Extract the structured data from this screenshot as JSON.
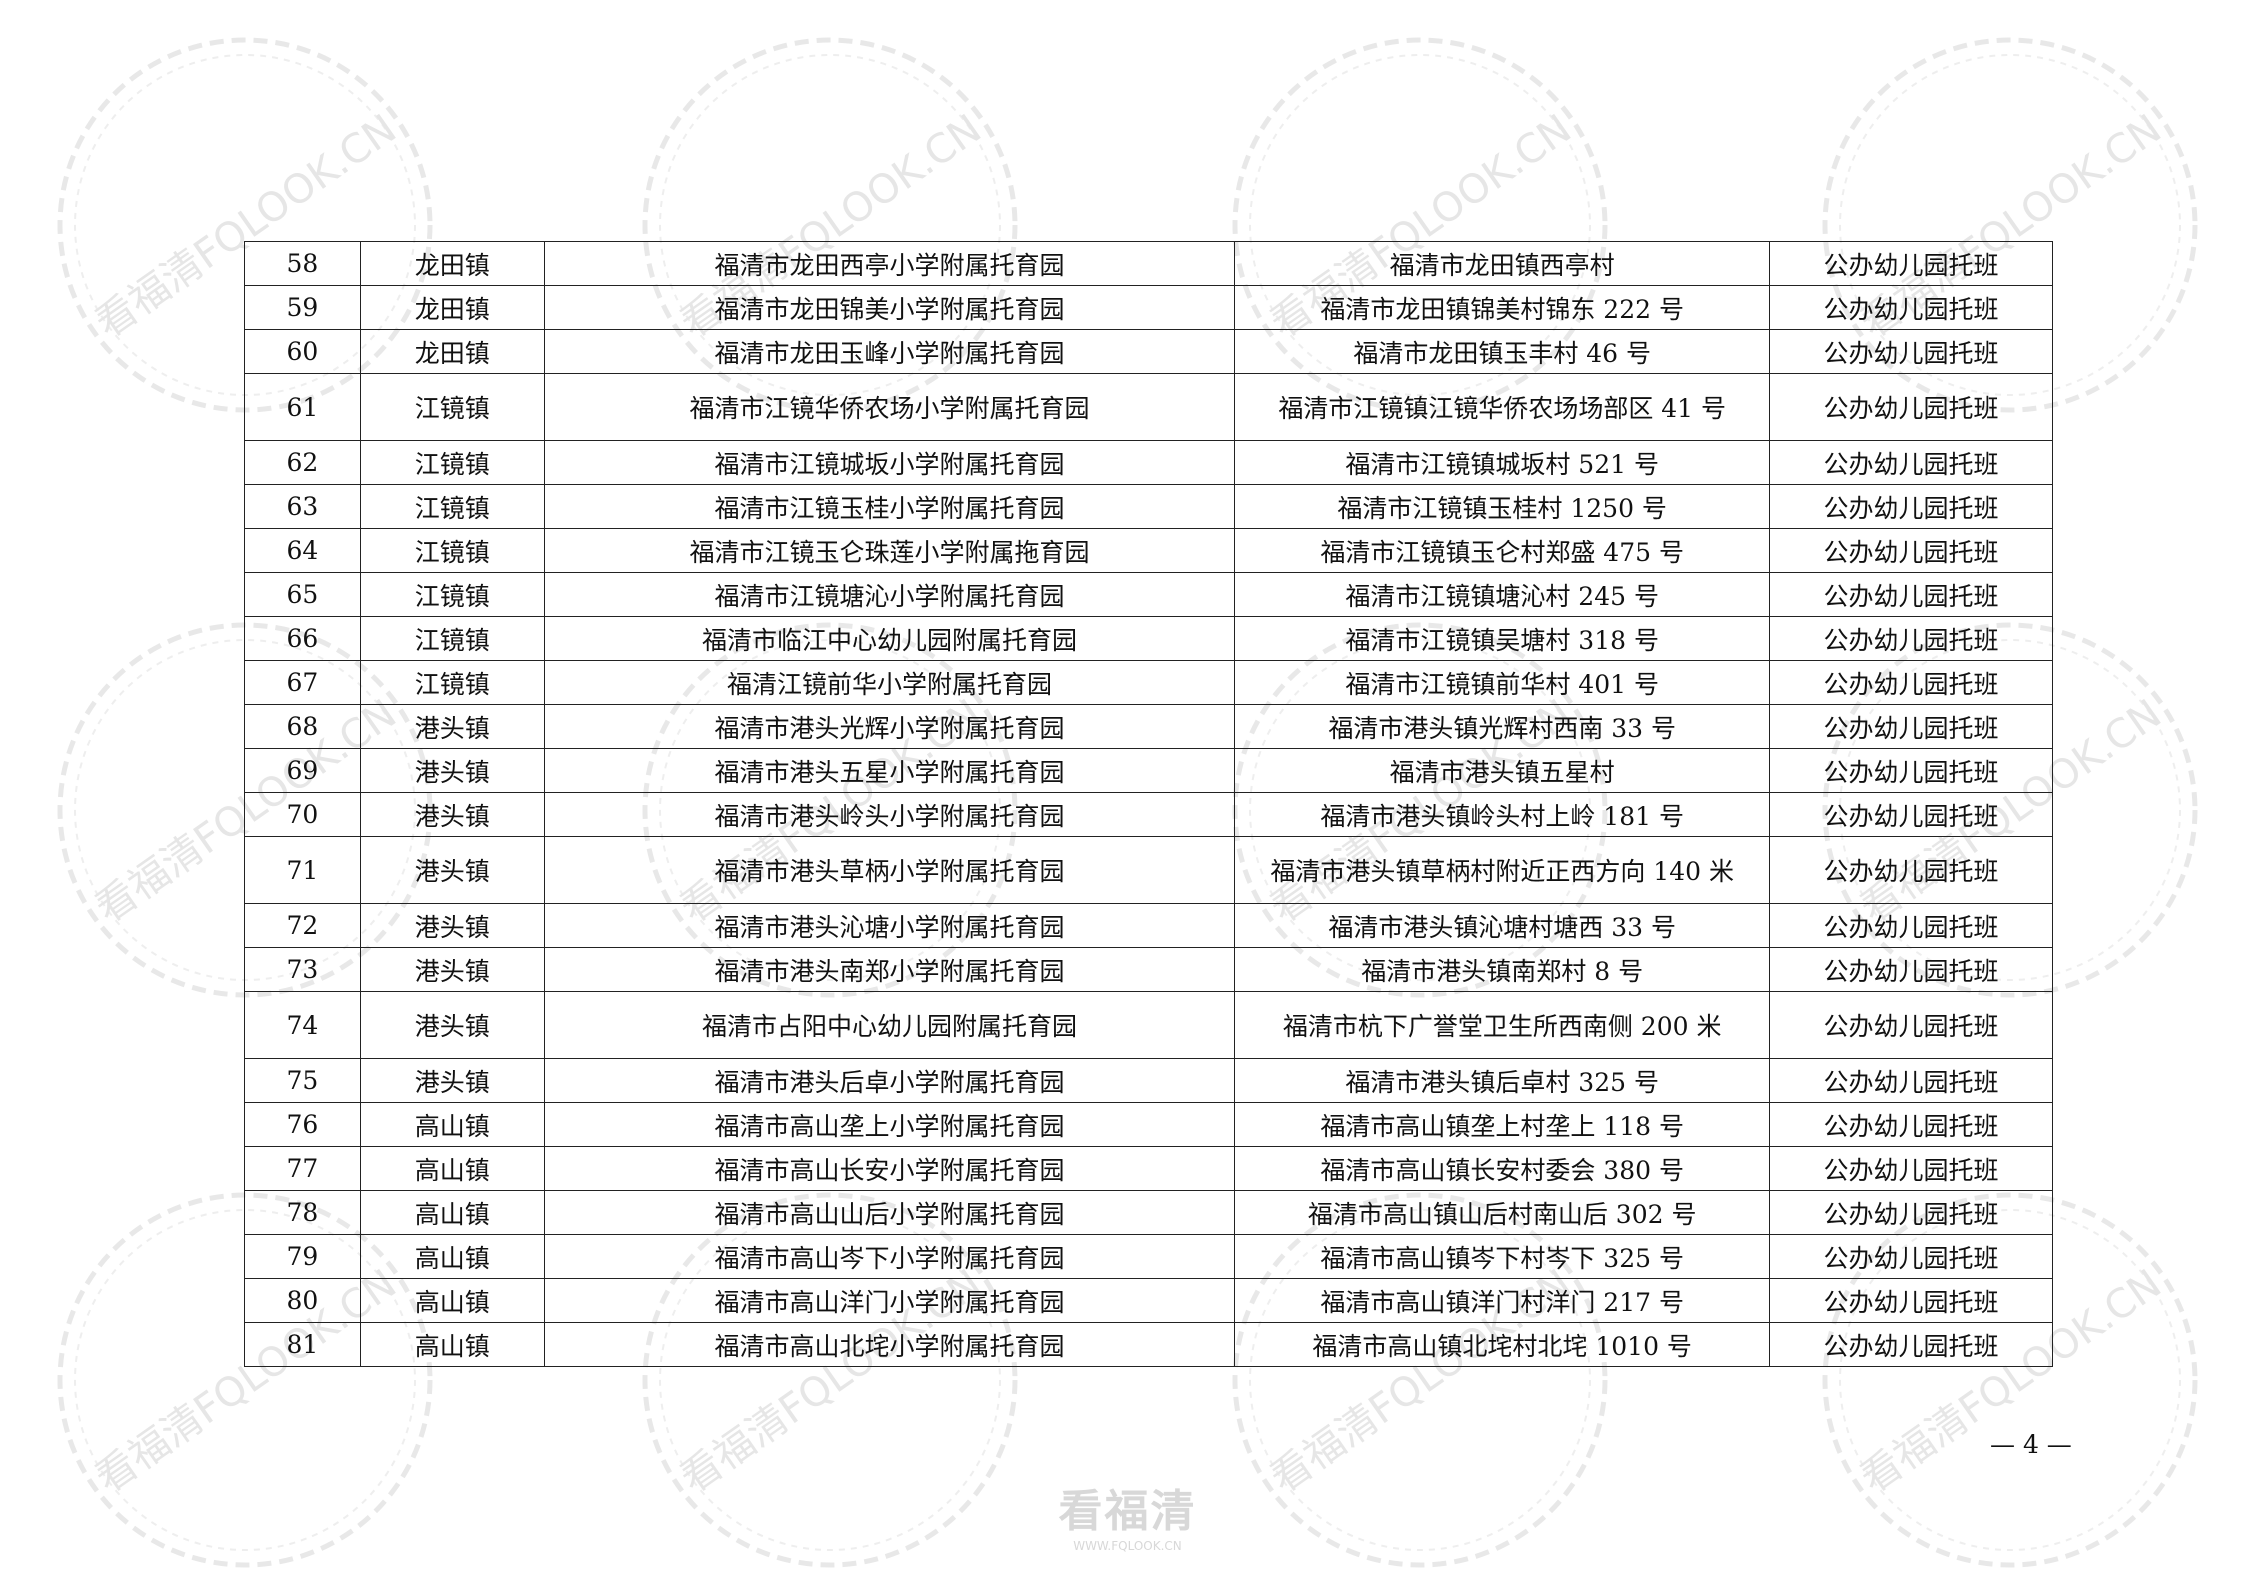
{
  "watermark": {
    "text": "看福清FQLOOK.CN"
  },
  "logo": {
    "text": "看福清",
    "url": "WWW.FQLOOK.CN"
  },
  "page_number": "— 4 —",
  "table": {
    "rows": [
      {
        "no": "58",
        "town": "龙田镇",
        "name": "福清市龙田西亭小学附属托育园",
        "address": "福清市龙田镇西亭村",
        "type": "公办幼儿园托班",
        "tall": false
      },
      {
        "no": "59",
        "town": "龙田镇",
        "name": "福清市龙田锦美小学附属托育园",
        "address": "福清市龙田镇锦美村锦东 222 号",
        "type": "公办幼儿园托班",
        "tall": false
      },
      {
        "no": "60",
        "town": "龙田镇",
        "name": "福清市龙田玉峰小学附属托育园",
        "address": "福清市龙田镇玉丰村 46 号",
        "type": "公办幼儿园托班",
        "tall": false
      },
      {
        "no": "61",
        "town": "江镜镇",
        "name": "福清市江镜华侨农场小学附属托育园",
        "address": "福清市江镜镇江镜华侨农场场部区 41 号",
        "type": "公办幼儿园托班",
        "tall": true
      },
      {
        "no": "62",
        "town": "江镜镇",
        "name": "福清市江镜城坂小学附属托育园",
        "address": "福清市江镜镇城坂村 521 号",
        "type": "公办幼儿园托班",
        "tall": false
      },
      {
        "no": "63",
        "town": "江镜镇",
        "name": "福清市江镜玉桂小学附属托育园",
        "address": "福清市江镜镇玉桂村 1250 号",
        "type": "公办幼儿园托班",
        "tall": false
      },
      {
        "no": "64",
        "town": "江镜镇",
        "name": "福清市江镜玉仑珠莲小学附属拖育园",
        "address": "福清市江镜镇玉仑村郑盛 475 号",
        "type": "公办幼儿园托班",
        "tall": false
      },
      {
        "no": "65",
        "town": "江镜镇",
        "name": "福清市江镜塘沁小学附属托育园",
        "address": "福清市江镜镇塘沁村 245 号",
        "type": "公办幼儿园托班",
        "tall": false
      },
      {
        "no": "66",
        "town": "江镜镇",
        "name": "福清市临江中心幼儿园附属托育园",
        "address": "福清市江镜镇吴塘村 318 号",
        "type": "公办幼儿园托班",
        "tall": false
      },
      {
        "no": "67",
        "town": "江镜镇",
        "name": "福清江镜前华小学附属托育园",
        "address": "福清市江镜镇前华村 401 号",
        "type": "公办幼儿园托班",
        "tall": false
      },
      {
        "no": "68",
        "town": "港头镇",
        "name": "福清市港头光辉小学附属托育园",
        "address": "福清市港头镇光辉村西南 33 号",
        "type": "公办幼儿园托班",
        "tall": false
      },
      {
        "no": "69",
        "town": "港头镇",
        "name": "福清市港头五星小学附属托育园",
        "address": "福清市港头镇五星村",
        "type": "公办幼儿园托班",
        "tall": false
      },
      {
        "no": "70",
        "town": "港头镇",
        "name": "福清市港头岭头小学附属托育园",
        "address": "福清市港头镇岭头村上岭 181 号",
        "type": "公办幼儿园托班",
        "tall": false
      },
      {
        "no": "71",
        "town": "港头镇",
        "name": "福清市港头草柄小学附属托育园",
        "address": "福清市港头镇草柄村附近正西方向 140 米",
        "type": "公办幼儿园托班",
        "tall": true
      },
      {
        "no": "72",
        "town": "港头镇",
        "name": "福清市港头沁塘小学附属托育园",
        "address": "福清市港头镇沁塘村塘西 33 号",
        "type": "公办幼儿园托班",
        "tall": false
      },
      {
        "no": "73",
        "town": "港头镇",
        "name": "福清市港头南郑小学附属托育园",
        "address": "福清市港头镇南郑村 8 号",
        "type": "公办幼儿园托班",
        "tall": false
      },
      {
        "no": "74",
        "town": "港头镇",
        "name": "福清市占阳中心幼儿园附属托育园",
        "address": "福清市杭下广誉堂卫生所西南侧 200 米",
        "type": "公办幼儿园托班",
        "tall": true
      },
      {
        "no": "75",
        "town": "港头镇",
        "name": "福清市港头后卓小学附属托育园",
        "address": "福清市港头镇后卓村 325 号",
        "type": "公办幼儿园托班",
        "tall": false
      },
      {
        "no": "76",
        "town": "高山镇",
        "name": "福清市高山垄上小学附属托育园",
        "address": "福清市高山镇垄上村垄上 118 号",
        "type": "公办幼儿园托班",
        "tall": false
      },
      {
        "no": "77",
        "town": "高山镇",
        "name": "福清市高山长安小学附属托育园",
        "address": "福清市高山镇长安村委会 380 号",
        "type": "公办幼儿园托班",
        "tall": false
      },
      {
        "no": "78",
        "town": "高山镇",
        "name": "福清市高山山后小学附属托育园",
        "address": "福清市高山镇山后村南山后 302 号",
        "type": "公办幼儿园托班",
        "tall": false
      },
      {
        "no": "79",
        "town": "高山镇",
        "name": "福清市高山岑下小学附属托育园",
        "address": "福清市高山镇岑下村岑下 325 号",
        "type": "公办幼儿园托班",
        "tall": false
      },
      {
        "no": "80",
        "town": "高山镇",
        "name": "福清市高山洋门小学附属托育园",
        "address": "福清市高山镇洋门村洋门 217 号",
        "type": "公办幼儿园托班",
        "tall": false
      },
      {
        "no": "81",
        "town": "高山镇",
        "name": "福清市高山北垞小学附属托育园",
        "address": "福清市高山镇北垞村北垞 1010 号",
        "type": "公办幼儿园托班",
        "tall": false
      }
    ]
  }
}
